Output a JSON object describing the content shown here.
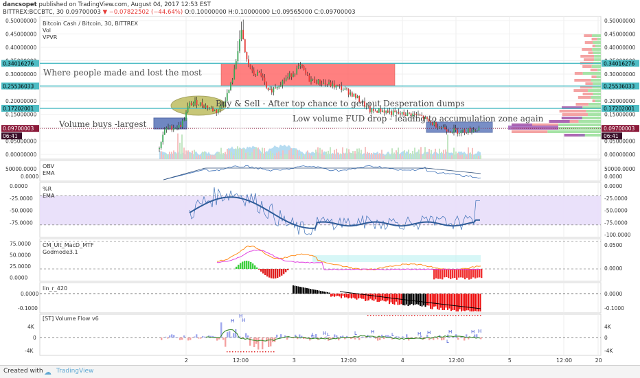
{
  "header": {
    "user": "dancsopet",
    "published": "published on TradingView.com, August 04, 2017 12:53 EST",
    "symbol_line": "BITTREX:BCCBTC, 30",
    "last": "0.09700003",
    "change": "▼ −0.07822502 (−44.64%)",
    "ohlc": "O:0.10000000 H:0.10000000 L:0.09565000 C:0.09700003",
    "down_color": "#e53935"
  },
  "footer": {
    "created_with": "Created with",
    "brand": "TradingView"
  },
  "chart_data": [
    {
      "type": "candlestick",
      "title": "Bitcoin Cash / Bitcoin, 30, BITTREX",
      "indicators": [
        "Vol",
        "VPVR"
      ],
      "ylim": [
        0,
        0.5
      ],
      "y_ticks": [
        "0.50000000",
        "0.45000000",
        "0.40000000",
        "0.35000000",
        "0.30000000",
        "0.25000000",
        "0.20000000",
        "0.15000000",
        "0.10000000",
        "0.05000000",
        "0.00000000"
      ],
      "x_ticks": [
        "2",
        "12:00",
        "3",
        "12:00",
        "4",
        "12:00",
        "5",
        "12:00",
        "20"
      ],
      "price_levels": [
        {
          "value": 0.34016276,
          "label": "0.34016276",
          "color": "#4dbcc4"
        },
        {
          "value": 0.25536033,
          "label": "0.25536033",
          "color": "#4dbcc4"
        },
        {
          "value": 0.17202001,
          "label": "0.17202001",
          "color": "#4dbcc4"
        },
        {
          "value": 0.09700003,
          "label": "0.09700003",
          "color": "#8b1a3a"
        }
      ],
      "countdown": "06:41",
      "annotations": [
        "Where people made and lost the most",
        "Buy & Sell - After top chance to get out Desperation dumps",
        "Volume buys -largest",
        "Low volume FUD drop - leading to accumulation zone again"
      ]
    },
    {
      "type": "line",
      "title": "OBV",
      "series": [
        {
          "name": "EMA"
        }
      ],
      "y_ticks": [
        "50000.0000",
        "0.0000"
      ],
      "y_ticks_left": [
        "50000.0000",
        "0.0000"
      ]
    },
    {
      "type": "line",
      "title": "%R",
      "series": [
        {
          "name": "EMA"
        }
      ],
      "ylim": [
        -100,
        0
      ],
      "y_ticks": [
        "0.0000",
        "-25.0000",
        "-50.0000",
        "-75.0000",
        "-100.0000"
      ],
      "y_ticks_left": [
        "0.0000",
        "-25.0000",
        "-50.0000",
        "-75.0000"
      ]
    },
    {
      "type": "histogram",
      "title": "CM_Ult_MacD_MTF",
      "series": [
        {
          "name": "Godmode3.1"
        }
      ],
      "y_ticks": [
        "0.0500",
        "0.0000"
      ],
      "y_ticks_left": [
        "75.0000",
        "50.0000",
        "25.0000",
        "0.0000"
      ]
    },
    {
      "type": "histogram",
      "title": "lin_r_420",
      "y_ticks": [
        "0.0000",
        "-0.1000"
      ],
      "y_ticks_left": [
        "0.0000",
        "-0.1000"
      ]
    },
    {
      "type": "histogram",
      "title": "[ST] Volume Flow v6",
      "y_ticks": [
        "4K",
        "0",
        "-4K"
      ],
      "y_ticks_left": [
        "4K",
        "0",
        "-4K"
      ]
    }
  ]
}
